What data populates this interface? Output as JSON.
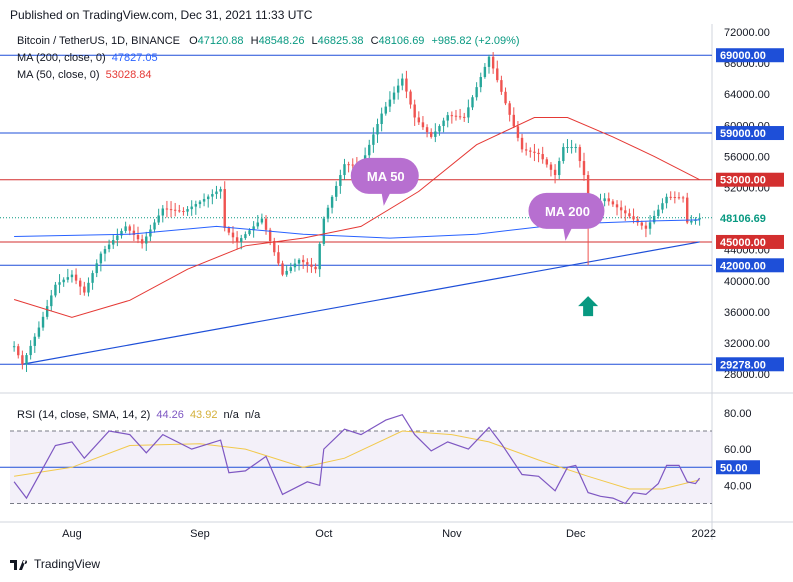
{
  "header": {
    "published": "Published on TradingView.com, Dec 31, 2021 11:33 UTC"
  },
  "legend": {
    "symbol": "Bitcoin / TetherUS, 1D, BINANCE",
    "o_label": "O",
    "o": "47120.88",
    "h_label": "H",
    "h": "48548.26",
    "l_label": "L",
    "l": "46825.38",
    "c_label": "C",
    "c": "48106.69",
    "change": "+985.82 (+2.09%)",
    "ma200_label": "MA (200, close, 0)",
    "ma200_value": "47827.05",
    "ma50_label": "MA (50, close, 0)",
    "ma50_value": "53028.84",
    "rsi_label": "RSI (14, close, SMA, 14, 2)",
    "rsi_value": "44.26",
    "rsi_sma_value": "43.92",
    "rsi_na1": "n/a",
    "rsi_na2": "n/a"
  },
  "footer": {
    "brand": "TradingView"
  },
  "colors": {
    "up": "#26a69a",
    "down": "#ef5350",
    "ma50": "#e53935",
    "ma200": "#2962ff",
    "support": "#1e4fd8",
    "resistance": "#d32f2f",
    "rsi": "#7e57c2",
    "rsi_sma": "#f2c94c",
    "callout": "#b76fd0",
    "arrow": "#089981"
  },
  "chart_data": {
    "type": "candlestick",
    "symbol": "BTCUSDT",
    "timeframe": "1D",
    "price_axis": {
      "ticks": [
        "72000.00",
        "68000.00",
        "64000.00",
        "60000.00",
        "56000.00",
        "52000.00",
        "48000.00",
        "44000.00",
        "40000.00",
        "36000.00",
        "32000.00",
        "28000.00"
      ],
      "range": [
        27000,
        72500
      ]
    },
    "time_axis": {
      "labels": [
        "Aug",
        "Sep",
        "Oct",
        "Nov",
        "Dec",
        "2022"
      ]
    },
    "horizontal_levels": [
      {
        "value": 69000,
        "label": "69000.00",
        "color": "#1e4fd8"
      },
      {
        "value": 59000,
        "label": "59000.00",
        "color": "#1e4fd8"
      },
      {
        "value": 53000,
        "label": "53000.00",
        "color": "#d32f2f"
      },
      {
        "value": 45000,
        "label": "45000.00",
        "color": "#d32f2f"
      },
      {
        "value": 42000,
        "label": "42000.00",
        "color": "#1e4fd8"
      },
      {
        "value": 29278,
        "label": "29278.00",
        "color": "#1e4fd8"
      }
    ],
    "current_price": {
      "value": 48106.69,
      "label": "48106.69"
    },
    "trendline": {
      "from": {
        "date": "2021-07-20",
        "price": 29278
      },
      "to": {
        "date": "2021-12-31",
        "price": 45000
      }
    },
    "annotations": [
      {
        "text": "MA 50",
        "anchor": {
          "date": "2021-10-16",
          "price": 53500
        }
      },
      {
        "text": "MA 200",
        "anchor": {
          "date": "2021-11-29",
          "price": 49000
        }
      }
    ],
    "arrow": {
      "direction": "up",
      "date": "2021-12-04",
      "price": 36500
    },
    "ma_keypoints": {
      "ma50": [
        [
          "2021-07-18",
          37600
        ],
        [
          "2021-08-01",
          35300
        ],
        [
          "2021-08-15",
          37500
        ],
        [
          "2021-08-29",
          41500
        ],
        [
          "2021-09-12",
          44500
        ],
        [
          "2021-09-26",
          45500
        ],
        [
          "2021-10-10",
          47000
        ],
        [
          "2021-10-24",
          51500
        ],
        [
          "2021-11-07",
          57500
        ],
        [
          "2021-11-21",
          61000
        ],
        [
          "2021-11-29",
          61000
        ],
        [
          "2021-12-10",
          58500
        ],
        [
          "2021-12-20",
          56000
        ],
        [
          "2021-12-31",
          53000
        ]
      ],
      "ma200": [
        [
          "2021-07-18",
          45700
        ],
        [
          "2021-08-15",
          46000
        ],
        [
          "2021-09-05",
          47000
        ],
        [
          "2021-09-26",
          46000
        ],
        [
          "2021-10-17",
          45500
        ],
        [
          "2021-11-07",
          46000
        ],
        [
          "2021-11-28",
          47300
        ],
        [
          "2021-12-20",
          47700
        ],
        [
          "2021-12-31",
          47830
        ]
      ]
    },
    "price_keypoints": [
      [
        "2021-07-18",
        31600
      ],
      [
        "2021-07-20",
        29278
      ],
      [
        "2021-07-24",
        34000
      ],
      [
        "2021-07-28",
        39500
      ],
      [
        "2021-08-01",
        40800
      ],
      [
        "2021-08-04",
        38500
      ],
      [
        "2021-08-08",
        43500
      ],
      [
        "2021-08-14",
        47000
      ],
      [
        "2021-08-18",
        44800
      ],
      [
        "2021-08-23",
        49300
      ],
      [
        "2021-08-28",
        48900
      ],
      [
        "2021-09-06",
        51800
      ],
      [
        "2021-09-07",
        46800
      ],
      [
        "2021-09-10",
        45000
      ],
      [
        "2021-09-16",
        48000
      ],
      [
        "2021-09-21",
        40800
      ],
      [
        "2021-09-25",
        42700
      ],
      [
        "2021-09-29",
        41500
      ],
      [
        "2021-10-01",
        48000
      ],
      [
        "2021-10-06",
        55000
      ],
      [
        "2021-10-10",
        54800
      ],
      [
        "2021-10-15",
        61500
      ],
      [
        "2021-10-20",
        66000
      ],
      [
        "2021-10-23",
        61000
      ],
      [
        "2021-10-27",
        58500
      ],
      [
        "2021-10-31",
        61300
      ],
      [
        "2021-11-04",
        61000
      ],
      [
        "2021-11-10",
        68800
      ],
      [
        "2021-11-13",
        64300
      ],
      [
        "2021-11-18",
        56900
      ],
      [
        "2021-11-22",
        56300
      ],
      [
        "2021-11-26",
        53600
      ],
      [
        "2021-11-28",
        57200
      ],
      [
        "2021-12-01",
        57200
      ],
      [
        "2021-12-03",
        53600
      ],
      [
        "2021-12-04",
        49200
      ],
      [
        "2021-12-08",
        50600
      ],
      [
        "2021-12-14",
        48300
      ],
      [
        "2021-12-18",
        46700
      ],
      [
        "2021-12-23",
        50800
      ],
      [
        "2021-12-27",
        50700
      ],
      [
        "2021-12-28",
        47500
      ],
      [
        "2021-12-31",
        48100
      ]
    ],
    "flash_crash_low": {
      "date": "2021-12-04",
      "price": 42000
    },
    "rsi": {
      "axis": {
        "ticks": [
          "80.00",
          "60.00",
          "40.00"
        ],
        "range": [
          22,
          86
        ],
        "bands": [
          70,
          30
        ],
        "mid": 50,
        "mid_label": "50.00"
      },
      "keypoints": [
        [
          "2021-07-18",
          42
        ],
        [
          "2021-07-21",
          33
        ],
        [
          "2021-07-28",
          62
        ],
        [
          "2021-08-01",
          64
        ],
        [
          "2021-08-04",
          55
        ],
        [
          "2021-08-10",
          70
        ],
        [
          "2021-08-15",
          68
        ],
        [
          "2021-08-19",
          58
        ],
        [
          "2021-08-23",
          68
        ],
        [
          "2021-08-30",
          60
        ],
        [
          "2021-09-06",
          65
        ],
        [
          "2021-09-08",
          47
        ],
        [
          "2021-09-12",
          48
        ],
        [
          "2021-09-17",
          56
        ],
        [
          "2021-09-21",
          35
        ],
        [
          "2021-09-27",
          42
        ],
        [
          "2021-09-30",
          40
        ],
        [
          "2021-10-01",
          60
        ],
        [
          "2021-10-06",
          71
        ],
        [
          "2021-10-10",
          68
        ],
        [
          "2021-10-16",
          76
        ],
        [
          "2021-10-20",
          79
        ],
        [
          "2021-10-23",
          68
        ],
        [
          "2021-10-27",
          59
        ],
        [
          "2021-10-31",
          64
        ],
        [
          "2021-11-05",
          60
        ],
        [
          "2021-11-10",
          72
        ],
        [
          "2021-11-13",
          63
        ],
        [
          "2021-11-18",
          46
        ],
        [
          "2021-11-22",
          45
        ],
        [
          "2021-11-26",
          37
        ],
        [
          "2021-11-29",
          50
        ],
        [
          "2021-12-01",
          51
        ],
        [
          "2021-12-04",
          36
        ],
        [
          "2021-12-07",
          34
        ],
        [
          "2021-12-10",
          33
        ],
        [
          "2021-12-13",
          30
        ],
        [
          "2021-12-15",
          36
        ],
        [
          "2021-12-18",
          35
        ],
        [
          "2021-12-21",
          41
        ],
        [
          "2021-12-23",
          51
        ],
        [
          "2021-12-26",
          51
        ],
        [
          "2021-12-28",
          42
        ],
        [
          "2021-12-30",
          41
        ],
        [
          "2021-12-31",
          44
        ]
      ],
      "sma_keypoints": [
        [
          "2021-07-18",
          45
        ],
        [
          "2021-08-01",
          50
        ],
        [
          "2021-08-15",
          62
        ],
        [
          "2021-09-01",
          63
        ],
        [
          "2021-09-12",
          60
        ],
        [
          "2021-09-26",
          50
        ],
        [
          "2021-10-06",
          55
        ],
        [
          "2021-10-20",
          70
        ],
        [
          "2021-11-01",
          68
        ],
        [
          "2021-11-10",
          64
        ],
        [
          "2021-11-22",
          54
        ],
        [
          "2021-12-04",
          45
        ],
        [
          "2021-12-14",
          38
        ],
        [
          "2021-12-22",
          38
        ],
        [
          "2021-12-31",
          43
        ]
      ]
    }
  }
}
